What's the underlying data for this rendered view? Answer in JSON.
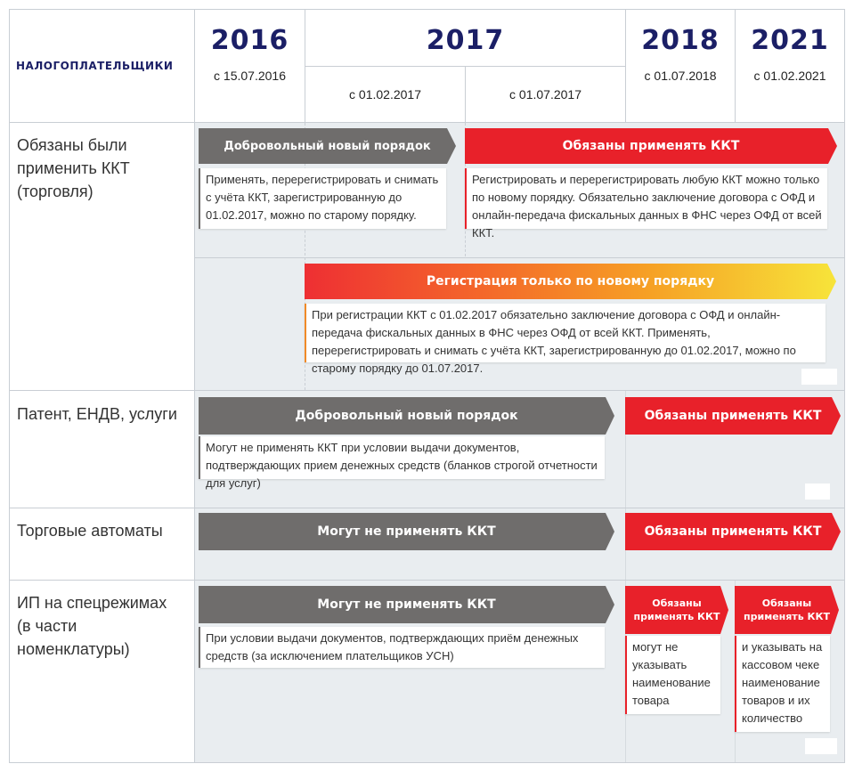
{
  "header": {
    "taxpayers_label": "НАЛОГОПЛАТЕЛЬЩИКИ",
    "years": [
      {
        "year": "2016",
        "date": "с 15.07.2016"
      },
      {
        "year": "2017"
      },
      {
        "year": "2018",
        "date": "с 01.07.2018"
      },
      {
        "year": "2021",
        "date": "с 01.02.2021"
      }
    ],
    "sub_2017": [
      "с 01.02.2017",
      "с 01.07.2017"
    ]
  },
  "rows": {
    "trade": {
      "label": [
        "Обязаны были",
        "применить ККТ",
        "(торговля)"
      ],
      "voluntary_arrow": "Добровольный новый порядок",
      "voluntary_note": "Применять, перерегистрировать и снимать с учёта ККТ, зарегистрированную до 01.02.2017, можно по старому порядку.",
      "obliged_arrow": "Обязаны применять ККТ",
      "obliged_note": "Регистрировать и перерегистрировать любую ККТ можно только по новому порядку. Обязательно заключение договора с ОФД и онлайн-передача фискальных данных в ФНС через ОФД от всей ККТ.",
      "registration_arrow": "Регистрация только по новому порядку",
      "registration_note": "При регистрации ККТ с 01.02.2017 обязательно заключение договора с ОФД и онлайн-передача фискальных данных в ФНС через ОФД от всей ККТ. Применять, перерегистрировать и снимать с учёта ККТ, зарегистрированную до 01.02.2017, можно по старому порядку до 01.07.2017."
    },
    "patent": {
      "label": "Патент, ЕНДВ, услуги",
      "voluntary_arrow": "Добровольный новый порядок",
      "voluntary_note": "Могут не применять ККТ при условии выдачи документов, подтверждающих прием денежных средств (бланков строгой отчетности для услуг)",
      "obliged_arrow": "Обязаны применять ККТ"
    },
    "vending": {
      "label": "Торговые автоматы",
      "may_not_arrow": "Могут не применять ККТ",
      "obliged_arrow": "Обязаны применять ККТ"
    },
    "ip": {
      "label": [
        "ИП на спецрежимах",
        "(в части номенклатуры)"
      ],
      "may_not_arrow": "Могут не применять ККТ",
      "may_not_note": "При условии выдачи документов, подтверждающих приём денежных средств (за исключением плательщиков УСН)",
      "obliged_2018_arrow": [
        "Обязаны",
        "применять ККТ"
      ],
      "obliged_2018_note": [
        "могут не",
        "указывать",
        "наименование",
        "товара"
      ],
      "obliged_2021_arrow": [
        "Обязаны",
        "применять ККТ"
      ],
      "obliged_2021_note": [
        "и указывать на",
        "кассовом чеке",
        "наименование",
        "товаров и их",
        "количество"
      ]
    }
  },
  "colors": {
    "navy": "#1b1f66",
    "gray_arrow": "#6f6d6c",
    "red_arrow": "#e8212a",
    "grid_bg": "#e9edf0",
    "border": "#c9ced4"
  }
}
